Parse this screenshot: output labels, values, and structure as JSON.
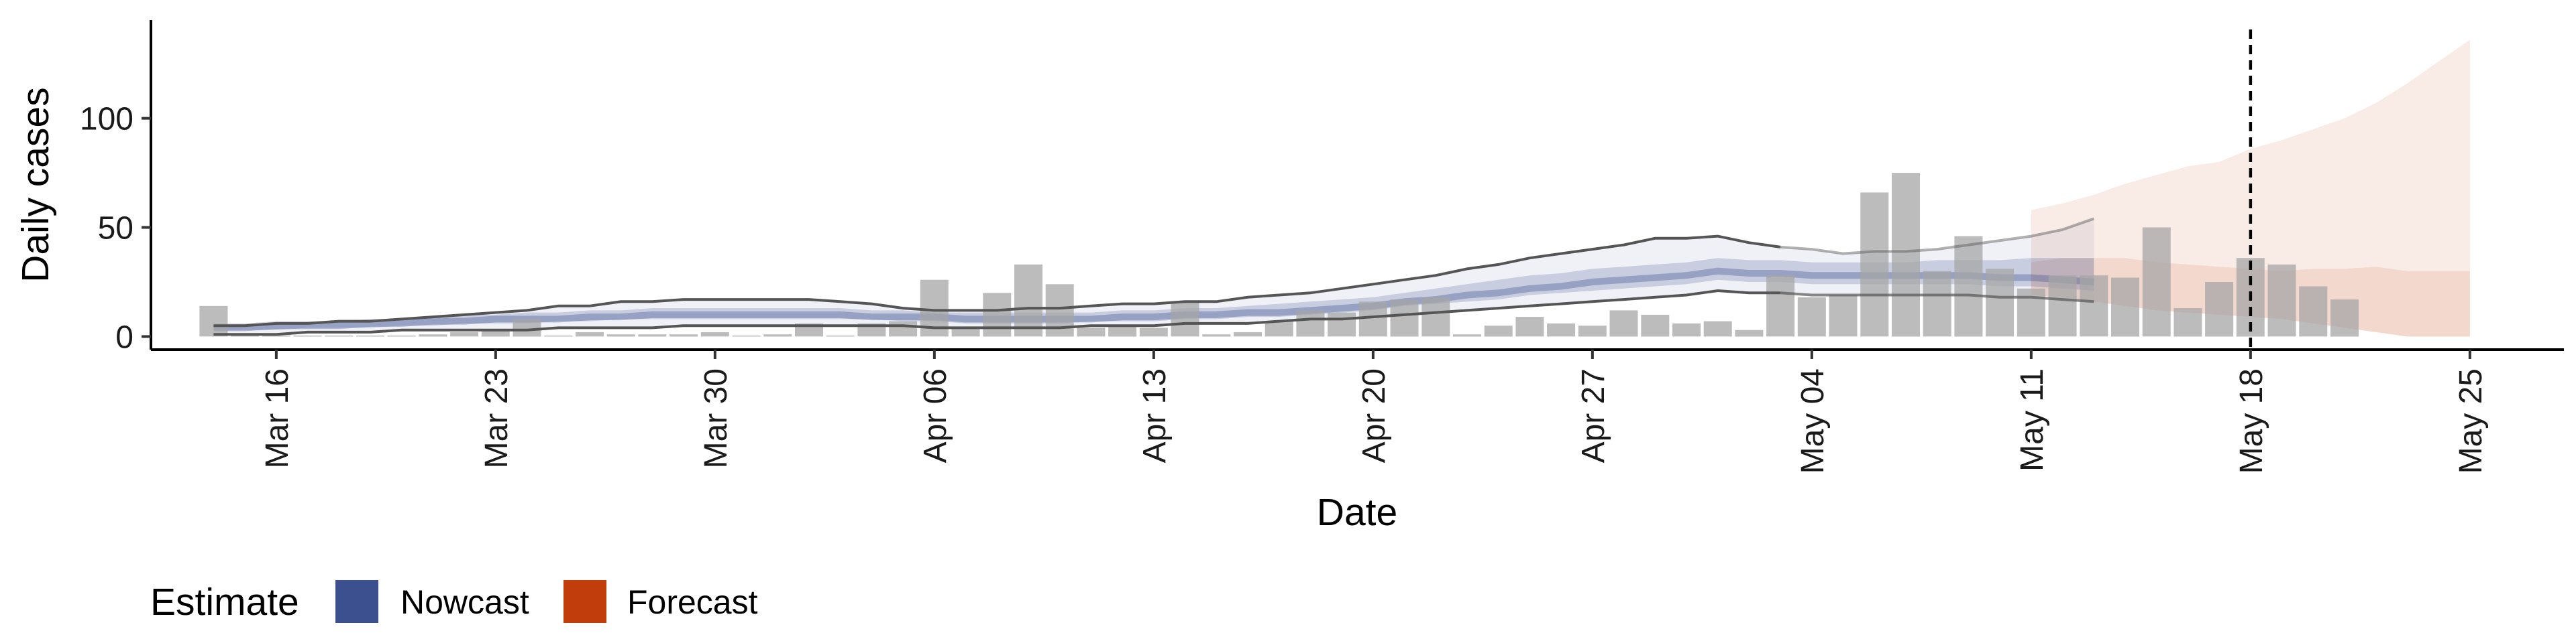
{
  "chart_data": {
    "type": "bar",
    "xlabel": "Date",
    "ylabel": "Daily cases",
    "xlim": [
      "2020-03-12",
      "2020-05-28"
    ],
    "ylim": [
      -6,
      145
    ],
    "x_ticks": [
      "2020-03-16",
      "2020-03-23",
      "2020-03-30",
      "2020-04-06",
      "2020-04-13",
      "2020-04-20",
      "2020-04-27",
      "2020-05-04",
      "2020-05-11",
      "2020-05-18",
      "2020-05-25"
    ],
    "x_tick_labels": [
      "Mar 16",
      "Mar 23",
      "Mar 30",
      "Apr 06",
      "Apr 13",
      "Apr 20",
      "Apr 27",
      "May 04",
      "May 11",
      "May 18",
      "May 25"
    ],
    "y_ticks": [
      0,
      50,
      100
    ],
    "y_tick_labels": [
      "0",
      "50",
      "100"
    ],
    "grid": false,
    "reference_line": {
      "date": "2020-05-18",
      "style": "dashed"
    },
    "colors": {
      "bars": "#a6a6a6",
      "nowcast": "#3c4f8e",
      "forecast": "#c13e0c",
      "bounds_line": "#555555"
    },
    "observed_cases": {
      "start_date": "2020-03-14",
      "values": [
        14,
        0,
        0,
        0,
        0,
        0,
        0,
        1,
        2,
        3,
        8,
        0,
        2,
        1,
        1,
        1,
        2,
        0,
        1,
        6,
        0,
        6,
        7,
        26,
        4,
        20,
        33,
        24,
        4,
        5,
        4,
        16,
        1,
        2,
        7,
        12,
        11,
        16,
        17,
        18,
        1,
        5,
        9,
        6,
        5,
        12,
        10,
        6,
        7,
        3,
        28,
        18,
        19,
        66,
        75,
        30,
        46,
        31,
        22,
        28,
        28,
        27,
        50,
        13,
        25,
        36,
        33,
        23,
        17
      ]
    },
    "legend": {
      "title": "Estimate",
      "position": "bottom-left",
      "entries": [
        {
          "label": "Nowcast",
          "color": "#3c4f8e"
        },
        {
          "label": "Forecast",
          "color": "#c13e0c"
        }
      ]
    },
    "series": [
      {
        "name": "Nowcast",
        "start_date": "2020-03-14",
        "lower_90": [
          1,
          1,
          1,
          2,
          2,
          2,
          3,
          3,
          3,
          3,
          3,
          4,
          4,
          4,
          4,
          5,
          5,
          5,
          5,
          5,
          5,
          5,
          5,
          4,
          4,
          4,
          4,
          4,
          5,
          5,
          5,
          6,
          6,
          6,
          7,
          8,
          8,
          9,
          10,
          11,
          12,
          13,
          14,
          15,
          16,
          17,
          18,
          19,
          21,
          20,
          20,
          19,
          19,
          19,
          19,
          19,
          19,
          18,
          18,
          17,
          16
        ],
        "lower_50": [
          3,
          3,
          3,
          4,
          4,
          4,
          5,
          5,
          6,
          6,
          6,
          7,
          7,
          8,
          8,
          8,
          8,
          8,
          8,
          8,
          8,
          8,
          7,
          7,
          6,
          6,
          6,
          6,
          7,
          7,
          7,
          8,
          8,
          9,
          9,
          10,
          11,
          12,
          14,
          15,
          16,
          17,
          19,
          20,
          21,
          22,
          23,
          24,
          26,
          25,
          25,
          24,
          24,
          24,
          24,
          24,
          24,
          23,
          23,
          22,
          21
        ],
        "median": [
          4,
          4,
          5,
          5,
          5,
          6,
          6,
          7,
          7,
          8,
          8,
          8,
          9,
          9,
          10,
          10,
          10,
          10,
          10,
          10,
          10,
          9,
          9,
          9,
          8,
          8,
          8,
          8,
          8,
          9,
          9,
          10,
          10,
          11,
          11,
          12,
          13,
          14,
          16,
          17,
          19,
          20,
          22,
          23,
          25,
          26,
          27,
          28,
          30,
          29,
          29,
          28,
          28,
          28,
          28,
          28,
          28,
          27,
          27,
          26,
          25
        ],
        "upper_50": [
          6,
          6,
          7,
          7,
          7,
          8,
          8,
          9,
          10,
          10,
          11,
          11,
          12,
          12,
          13,
          13,
          13,
          13,
          13,
          13,
          13,
          12,
          12,
          11,
          11,
          11,
          11,
          11,
          11,
          12,
          12,
          13,
          13,
          14,
          15,
          16,
          17,
          18,
          20,
          22,
          24,
          26,
          28,
          29,
          31,
          32,
          33,
          34,
          36,
          35,
          35,
          34,
          34,
          34,
          34,
          35,
          35,
          35,
          36,
          36,
          36
        ],
        "upper_90": [
          5,
          5,
          6,
          6,
          7,
          7,
          8,
          9,
          10,
          11,
          12,
          14,
          14,
          16,
          16,
          17,
          17,
          17,
          17,
          17,
          16,
          15,
          13,
          12,
          12,
          12,
          13,
          13,
          14,
          15,
          15,
          16,
          16,
          18,
          19,
          20,
          22,
          24,
          26,
          28,
          31,
          33,
          36,
          38,
          40,
          42,
          45,
          45,
          46,
          43,
          41,
          40,
          38,
          39,
          39,
          40,
          42,
          44,
          46,
          49,
          54
        ]
      },
      {
        "name": "Forecast",
        "start_date": "2020-05-11",
        "lower_90": [
          19,
          18,
          16,
          14,
          12,
          11,
          10,
          9,
          8,
          6,
          4,
          2,
          0,
          0,
          0
        ],
        "lower_50": [
          34,
          36,
          36,
          36,
          34,
          33,
          32,
          31,
          30,
          31,
          31,
          32,
          30,
          30,
          30
        ],
        "upper_90": [
          58,
          61,
          65,
          70,
          74,
          78,
          80,
          86,
          90,
          95,
          100,
          107,
          116,
          126,
          136
        ]
      }
    ]
  }
}
